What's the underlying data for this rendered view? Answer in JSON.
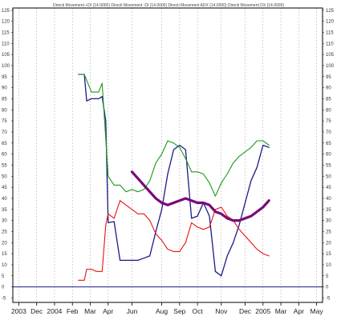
{
  "chart_data": {
    "type": "line",
    "title": "Directi Movement +DI (14.0000) Directi Movement -DI (14.0000) Directi Movement ADX (14.0000) Directi Movement DX (14.0000)",
    "ylim": [
      -7,
      126
    ],
    "y_ticks": [
      -5,
      0,
      5,
      10,
      15,
      20,
      25,
      30,
      35,
      40,
      45,
      50,
      55,
      60,
      65,
      70,
      75,
      80,
      85,
      90,
      95,
      100,
      105,
      110,
      115,
      120,
      125
    ],
    "x_tick_labels": [
      "2003",
      "Dec",
      "2004",
      "Feb",
      "Mar",
      "Apr",
      "Jun",
      "Aug",
      "Sep",
      "Oct",
      "Nov",
      "Dec",
      "2005",
      "Mar",
      "Apr",
      "May"
    ],
    "x_tick_positions": [
      0.5,
      2,
      3.5,
      5,
      6.5,
      8,
      10,
      12.5,
      14,
      15.5,
      17.5,
      19.5,
      21,
      22.5,
      24,
      25.5
    ],
    "grid": true,
    "series": [
      {
        "color": "#1a1a8a",
        "points": [
          [
            5.5,
            96
          ],
          [
            6.0,
            96
          ],
          [
            6.2,
            84
          ],
          [
            6.6,
            85
          ],
          [
            7.2,
            85
          ],
          [
            7.5,
            86
          ],
          [
            7.8,
            75
          ],
          [
            8.0,
            29
          ],
          [
            8.5,
            29.5
          ],
          [
            9.0,
            12
          ],
          [
            9.5,
            12
          ],
          [
            10.0,
            12
          ],
          [
            10.5,
            12
          ],
          [
            11.0,
            13
          ],
          [
            11.5,
            14
          ],
          [
            12.0,
            25
          ],
          [
            12.5,
            35
          ],
          [
            13.0,
            51
          ],
          [
            13.5,
            62
          ],
          [
            14.0,
            64
          ],
          [
            14.5,
            62
          ],
          [
            15.0,
            31
          ],
          [
            15.5,
            32
          ],
          [
            16.0,
            38
          ],
          [
            16.5,
            32
          ],
          [
            17.0,
            7
          ],
          [
            17.5,
            5
          ],
          [
            18.0,
            14
          ],
          [
            18.5,
            20
          ],
          [
            19.0,
            28
          ],
          [
            19.5,
            38
          ],
          [
            20.0,
            48
          ],
          [
            20.5,
            54
          ],
          [
            21.0,
            64
          ],
          [
            21.5,
            63
          ]
        ]
      },
      {
        "color": "#1a9a1a",
        "points": [
          [
            5.5,
            96
          ],
          [
            6.0,
            96
          ],
          [
            6.3,
            92
          ],
          [
            6.6,
            88
          ],
          [
            7.2,
            88
          ],
          [
            7.5,
            92
          ],
          [
            7.8,
            67
          ],
          [
            8.0,
            50
          ],
          [
            8.5,
            46
          ],
          [
            9.0,
            46
          ],
          [
            9.5,
            43
          ],
          [
            10.0,
            44
          ],
          [
            10.5,
            43
          ],
          [
            11.0,
            44
          ],
          [
            11.5,
            48
          ],
          [
            12.0,
            56
          ],
          [
            12.5,
            60
          ],
          [
            13.0,
            66
          ],
          [
            13.5,
            65
          ],
          [
            14.0,
            63
          ],
          [
            14.5,
            58
          ],
          [
            15.0,
            52
          ],
          [
            15.5,
            52
          ],
          [
            16.0,
            51
          ],
          [
            16.5,
            47
          ],
          [
            17.0,
            41
          ],
          [
            17.5,
            47
          ],
          [
            18.0,
            51
          ],
          [
            18.5,
            56
          ],
          [
            19.0,
            59
          ],
          [
            19.5,
            61
          ],
          [
            20.0,
            63
          ],
          [
            20.5,
            66
          ],
          [
            21.0,
            66
          ],
          [
            21.5,
            64
          ]
        ]
      },
      {
        "color": "#e81010",
        "points": [
          [
            5.5,
            3
          ],
          [
            6.0,
            3
          ],
          [
            6.2,
            8
          ],
          [
            6.6,
            8
          ],
          [
            7.0,
            7
          ],
          [
            7.5,
            7
          ],
          [
            7.8,
            28
          ],
          [
            8.0,
            33
          ],
          [
            8.5,
            31
          ],
          [
            9.0,
            39
          ],
          [
            9.5,
            37
          ],
          [
            10.0,
            35
          ],
          [
            10.5,
            33
          ],
          [
            11.0,
            33
          ],
          [
            11.5,
            30
          ],
          [
            12.0,
            24
          ],
          [
            12.5,
            21
          ],
          [
            13.0,
            17
          ],
          [
            13.5,
            16
          ],
          [
            14.0,
            16
          ],
          [
            14.5,
            20
          ],
          [
            15.0,
            29
          ],
          [
            15.5,
            27
          ],
          [
            16.0,
            26
          ],
          [
            16.5,
            27
          ],
          [
            17.0,
            35
          ],
          [
            17.5,
            36
          ],
          [
            18.0,
            32
          ],
          [
            18.5,
            30
          ],
          [
            19.0,
            26
          ],
          [
            19.5,
            23
          ],
          [
            20.0,
            20
          ],
          [
            20.5,
            17
          ],
          [
            21.0,
            15
          ],
          [
            21.5,
            14
          ]
        ]
      },
      {
        "color": "#7a0a7a",
        "points": [
          [
            10.0,
            52
          ],
          [
            10.5,
            49
          ],
          [
            11.0,
            46
          ],
          [
            11.5,
            43
          ],
          [
            12.0,
            40
          ],
          [
            12.5,
            38
          ],
          [
            13.0,
            37
          ],
          [
            13.5,
            38
          ],
          [
            14.0,
            39
          ],
          [
            14.5,
            40
          ],
          [
            15.0,
            39
          ],
          [
            15.5,
            38
          ],
          [
            16.0,
            38
          ],
          [
            16.5,
            37
          ],
          [
            17.0,
            34
          ],
          [
            17.5,
            33
          ],
          [
            18.0,
            31
          ],
          [
            18.5,
            30
          ],
          [
            19.0,
            30
          ],
          [
            19.5,
            31
          ],
          [
            20.0,
            32
          ],
          [
            20.5,
            34
          ],
          [
            21.0,
            36
          ],
          [
            21.5,
            39
          ]
        ]
      }
    ],
    "reference_line": {
      "y": 0,
      "color": "#1a1a8a"
    }
  }
}
